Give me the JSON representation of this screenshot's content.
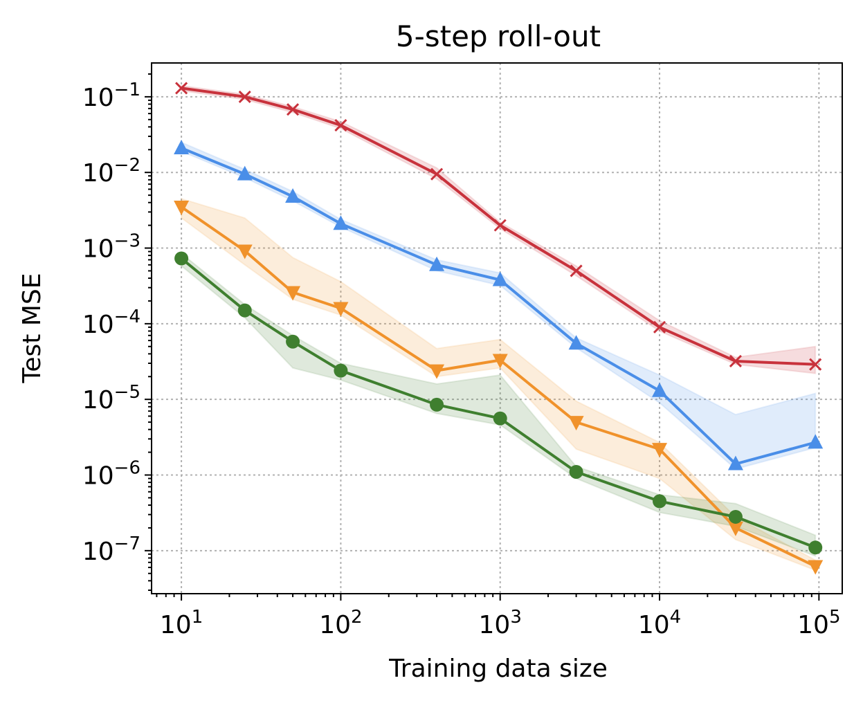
{
  "chart_data": {
    "type": "line",
    "title": "5-step roll-out",
    "xlabel": "Training data size",
    "ylabel": "Test MSE",
    "xscale": "log",
    "yscale": "log",
    "xlim": [
      6.5,
      140000
    ],
    "ylim": [
      2.7e-08,
      0.28
    ],
    "grid": true,
    "x_ticks": [
      {
        "value": 10,
        "base": "10",
        "exp": "1"
      },
      {
        "value": 100,
        "base": "10",
        "exp": "2"
      },
      {
        "value": 1000,
        "base": "10",
        "exp": "3"
      },
      {
        "value": 10000,
        "base": "10",
        "exp": "4"
      },
      {
        "value": 100000,
        "base": "10",
        "exp": "5"
      }
    ],
    "y_ticks": [
      {
        "value": 0.1,
        "base": "10",
        "exp": "−1"
      },
      {
        "value": 0.01,
        "base": "10",
        "exp": "−2"
      },
      {
        "value": 0.001,
        "base": "10",
        "exp": "−3"
      },
      {
        "value": 0.0001,
        "base": "10",
        "exp": "−4"
      },
      {
        "value": 1e-05,
        "base": "10",
        "exp": "−5"
      },
      {
        "value": 1e-06,
        "base": "10",
        "exp": "−6"
      },
      {
        "value": 1e-07,
        "base": "10",
        "exp": "−7"
      }
    ],
    "x": [
      10,
      25,
      50,
      100,
      400,
      1000,
      3000,
      10000,
      30000,
      95000
    ],
    "series": [
      {
        "name": "red-x",
        "color": "#c8323c",
        "marker": "x",
        "values": [
          0.13,
          0.1,
          0.068,
          0.042,
          0.0095,
          0.002,
          0.0005,
          9e-05,
          3.2e-05,
          2.9e-05
        ],
        "lower": [
          0.12,
          0.092,
          0.062,
          0.038,
          0.0082,
          0.0018,
          0.00043,
          8e-05,
          2.9e-05,
          2.2e-05
        ],
        "upper": [
          0.14,
          0.108,
          0.074,
          0.047,
          0.0115,
          0.0022,
          0.00058,
          0.00011,
          3.6e-05,
          5e-05
        ]
      },
      {
        "name": "blue-triangle-up",
        "color": "#4a8ee8",
        "marker": "triangle-up",
        "values": [
          0.021,
          0.0095,
          0.0048,
          0.0021,
          0.0006,
          0.00038,
          5.5e-05,
          1.3e-05,
          1.4e-06,
          2.7e-06
        ],
        "lower": [
          0.019,
          0.0085,
          0.0042,
          0.0019,
          0.0005,
          0.00032,
          4.8e-05,
          9e-06,
          1.2e-06,
          2.3e-06
        ],
        "upper": [
          0.025,
          0.011,
          0.0056,
          0.0024,
          0.0007,
          0.00047,
          6.5e-05,
          2.1e-05,
          6.3e-06,
          1.2e-05
        ]
      },
      {
        "name": "orange-triangle-down",
        "color": "#f0922b",
        "marker": "triangle-down",
        "values": [
          0.0035,
          0.00092,
          0.00026,
          0.00016,
          2.4e-05,
          3.3e-05,
          5e-06,
          2.2e-06,
          2e-07,
          6.2e-08
        ],
        "lower": [
          0.0025,
          0.0006,
          0.00021,
          0.00013,
          2e-05,
          2.6e-05,
          2.2e-06,
          9e-07,
          1.4e-07,
          5.5e-08
        ],
        "upper": [
          0.0045,
          0.0025,
          0.00075,
          0.00036,
          4.7e-05,
          6.2e-05,
          9.5e-06,
          2.7e-06,
          2.8e-07,
          7.5e-08
        ]
      },
      {
        "name": "green-circle",
        "color": "#3f7f2f",
        "marker": "circle",
        "values": [
          0.00073,
          0.00015,
          5.8e-05,
          2.4e-05,
          8.5e-06,
          5.6e-06,
          1.1e-06,
          4.5e-07,
          2.8e-07,
          1.1e-07
        ],
        "lower": [
          0.00058,
          0.00012,
          2.6e-05,
          1.8e-05,
          6.5e-06,
          4.6e-06,
          9e-07,
          3.2e-07,
          2.1e-07,
          8.5e-08
        ],
        "upper": [
          0.00085,
          0.00018,
          7e-05,
          3e-05,
          1.6e-05,
          2.1e-05,
          1.3e-06,
          5.5e-07,
          4.2e-07,
          1.6e-07
        ]
      }
    ]
  }
}
